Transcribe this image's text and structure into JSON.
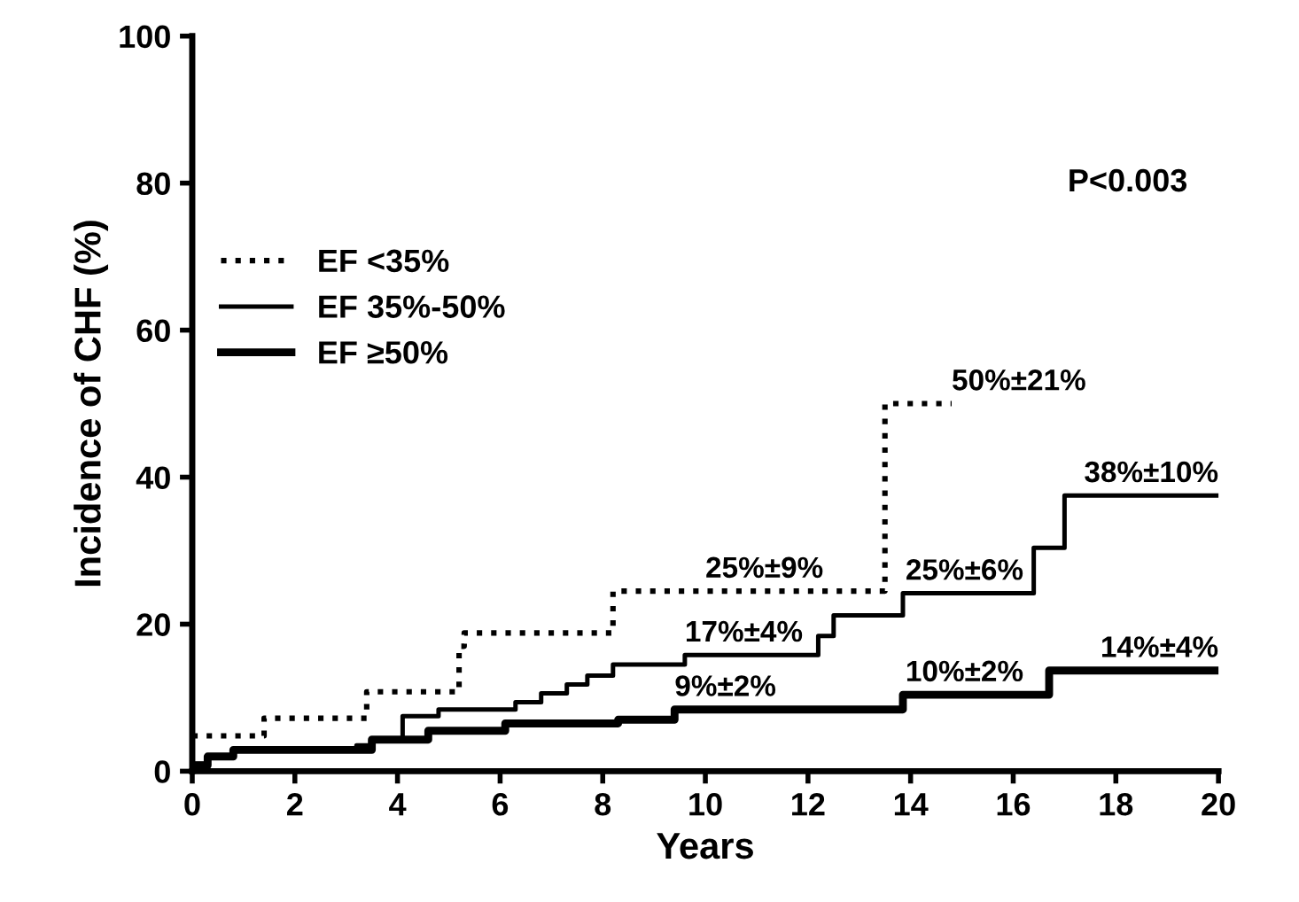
{
  "chart_data": {
    "type": "step",
    "xlabel": "Years",
    "ylabel": "Incidence of CHF (%)",
    "xlim": [
      0,
      20
    ],
    "ylim": [
      0,
      100
    ],
    "xticks": [
      0,
      2,
      4,
      6,
      8,
      10,
      12,
      14,
      16,
      18,
      20
    ],
    "yticks": [
      0,
      20,
      40,
      60,
      80,
      100
    ],
    "grid": false,
    "legend": "top left",
    "series": [
      {
        "name": "EF <35%",
        "color": "#000000",
        "line_style": "dotted",
        "x": [
          0,
          1.4,
          3.4,
          5.2,
          5.3,
          8.2,
          13.5,
          14.8
        ],
        "values": [
          4.8,
          7.2,
          10.8,
          17,
          18.8,
          24.5,
          50,
          50
        ]
      },
      {
        "name": "EF 35%-50%",
        "color": "#000000",
        "line_style": "solid",
        "x": [
          0,
          0.3,
          0.8,
          3.2,
          3.5,
          4.1,
          4.8,
          6.3,
          6.8,
          7.3,
          7.7,
          8.2,
          9.6,
          12.2,
          12.5,
          13.85,
          16.4,
          17.0,
          20
        ],
        "values": [
          1,
          2,
          3,
          3.5,
          4.3,
          7.5,
          8.4,
          9.4,
          10.6,
          11.8,
          13,
          14.5,
          15.8,
          18.4,
          21.2,
          24.2,
          30.4,
          37.5,
          37.5
        ]
      },
      {
        "name": "EF ≥50%",
        "color": "#000000",
        "line_style": "solid",
        "x": [
          0,
          0.3,
          0.8,
          3.5,
          4.6,
          6.1,
          8.3,
          9.4,
          13.85,
          16.7,
          20
        ],
        "values": [
          0.8,
          2,
          2.9,
          4.3,
          5.5,
          6.5,
          7,
          8.4,
          10.4,
          13.7,
          13.7
        ]
      }
    ],
    "annotations": [
      "P<0.003",
      {
        "text": "25%±9%",
        "x": 10,
        "y": 24.5
      },
      {
        "text": "50%±21%",
        "x": 14.8,
        "y": 50
      },
      {
        "text": "17%±4%",
        "x": 9.6,
        "y": 15.8
      },
      {
        "text": "9%±2%",
        "x": 9.4,
        "y": 8.4
      },
      {
        "text": "25%±6%",
        "x": 13.9,
        "y": 24.2
      },
      {
        "text": "10%±2%",
        "x": 13.9,
        "y": 10.4
      },
      {
        "text": "38%±10%",
        "x": 20,
        "y": 37.5
      },
      {
        "text": "14%±4%",
        "x": 20,
        "y": 13.7
      }
    ]
  }
}
